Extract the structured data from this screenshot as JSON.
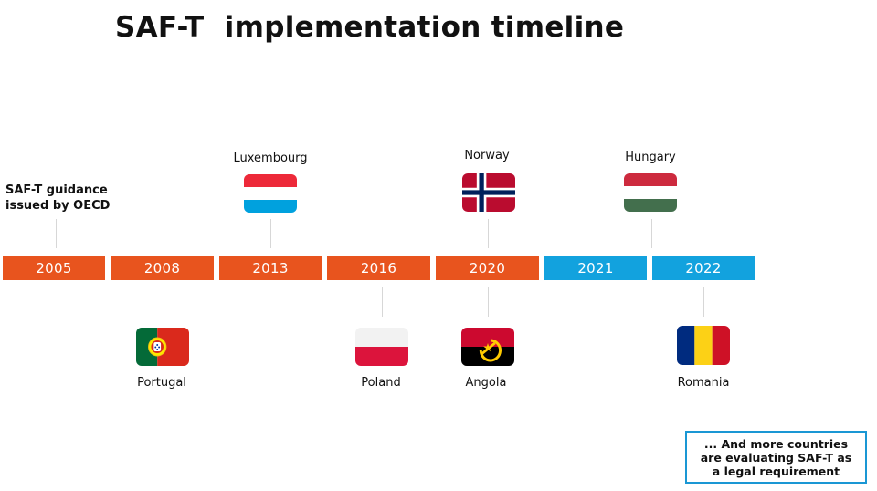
{
  "title": "SAF-T  implementation timeline",
  "guidance_label": "SAF-T guidance\nissued by OECD",
  "years": [
    "2005",
    "2008",
    "2013",
    "2016",
    "2020",
    "2021",
    "2022"
  ],
  "countries": {
    "luxembourg": "Luxembourg",
    "norway": "Norway",
    "hungary": "Hungary",
    "portugal": "Portugal",
    "poland": "Poland",
    "angola": "Angola",
    "romania": "Romania"
  },
  "note": "... And more countries\nare evaluating SAF-T as\na legal requirement",
  "colors": {
    "past_year": "#e8541e",
    "future_year": "#12a2de",
    "note_border": "#1a97d4"
  }
}
